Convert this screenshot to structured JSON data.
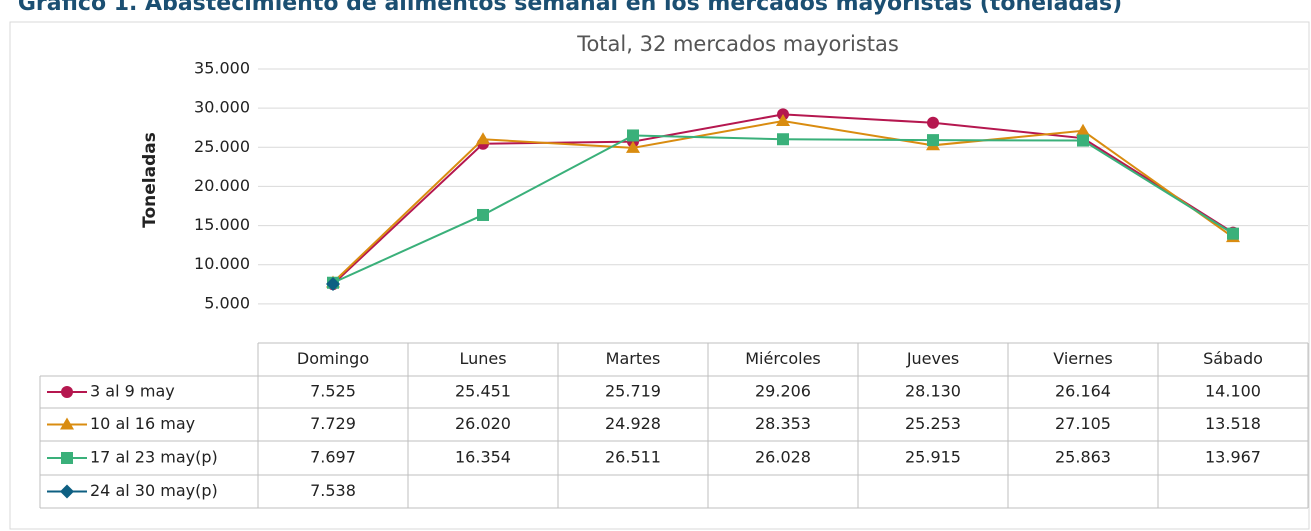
{
  "page_title": "Gráfico 1. Abastecimiento de alimentos semanal en los mercados mayoristas (toneladas)",
  "chart_data": {
    "type": "line",
    "title": "Total, 32 mercados mayoristas",
    "y_label": "Toneladas",
    "categories": [
      "Domingo",
      "Lunes",
      "Martes",
      "Miércoles",
      "Jueves",
      "Viernes",
      "Sábado"
    ],
    "series": [
      {
        "name": "3 al 9 may",
        "color": "#b5174f",
        "marker": "circle",
        "values": [
          7525,
          25451,
          25719,
          29206,
          28130,
          26164,
          14100
        ],
        "value_labels": [
          "7.525",
          "25.451",
          "25.719",
          "29.206",
          "28.130",
          "26.164",
          "14.100"
        ]
      },
      {
        "name": "10 al 16 may",
        "color": "#d98c10",
        "marker": "triangle",
        "values": [
          7729,
          26020,
          24928,
          28353,
          25253,
          27105,
          13518
        ],
        "value_labels": [
          "7.729",
          "26.020",
          "24.928",
          "28.353",
          "25.253",
          "27.105",
          "13.518"
        ]
      },
      {
        "name": "17 al 23 may(p)",
        "color": "#3ab07a",
        "marker": "square",
        "values": [
          7697,
          16354,
          26511,
          26028,
          25915,
          25863,
          13967
        ],
        "value_labels": [
          "7.697",
          "16.354",
          "26.511",
          "26.028",
          "25.915",
          "25.863",
          "13.967"
        ]
      },
      {
        "name": "24 al 30 may(p)",
        "color": "#0e5f82",
        "marker": "diamond",
        "values": [
          7538,
          null,
          null,
          null,
          null,
          null,
          null
        ],
        "value_labels": [
          "7.538",
          null,
          null,
          null,
          null,
          null,
          null
        ]
      }
    ],
    "ylim": [
      0,
      35000
    ],
    "yticks": [
      {
        "value": 5000,
        "label": "5.000"
      },
      {
        "value": 10000,
        "label": "10.000"
      },
      {
        "value": 15000,
        "label": "15.000"
      },
      {
        "value": 20000,
        "label": "20.000"
      },
      {
        "value": 25000,
        "label": "25.000"
      },
      {
        "value": 30000,
        "label": "30.000"
      },
      {
        "value": 35000,
        "label": "35.000"
      }
    ],
    "grid": true
  }
}
